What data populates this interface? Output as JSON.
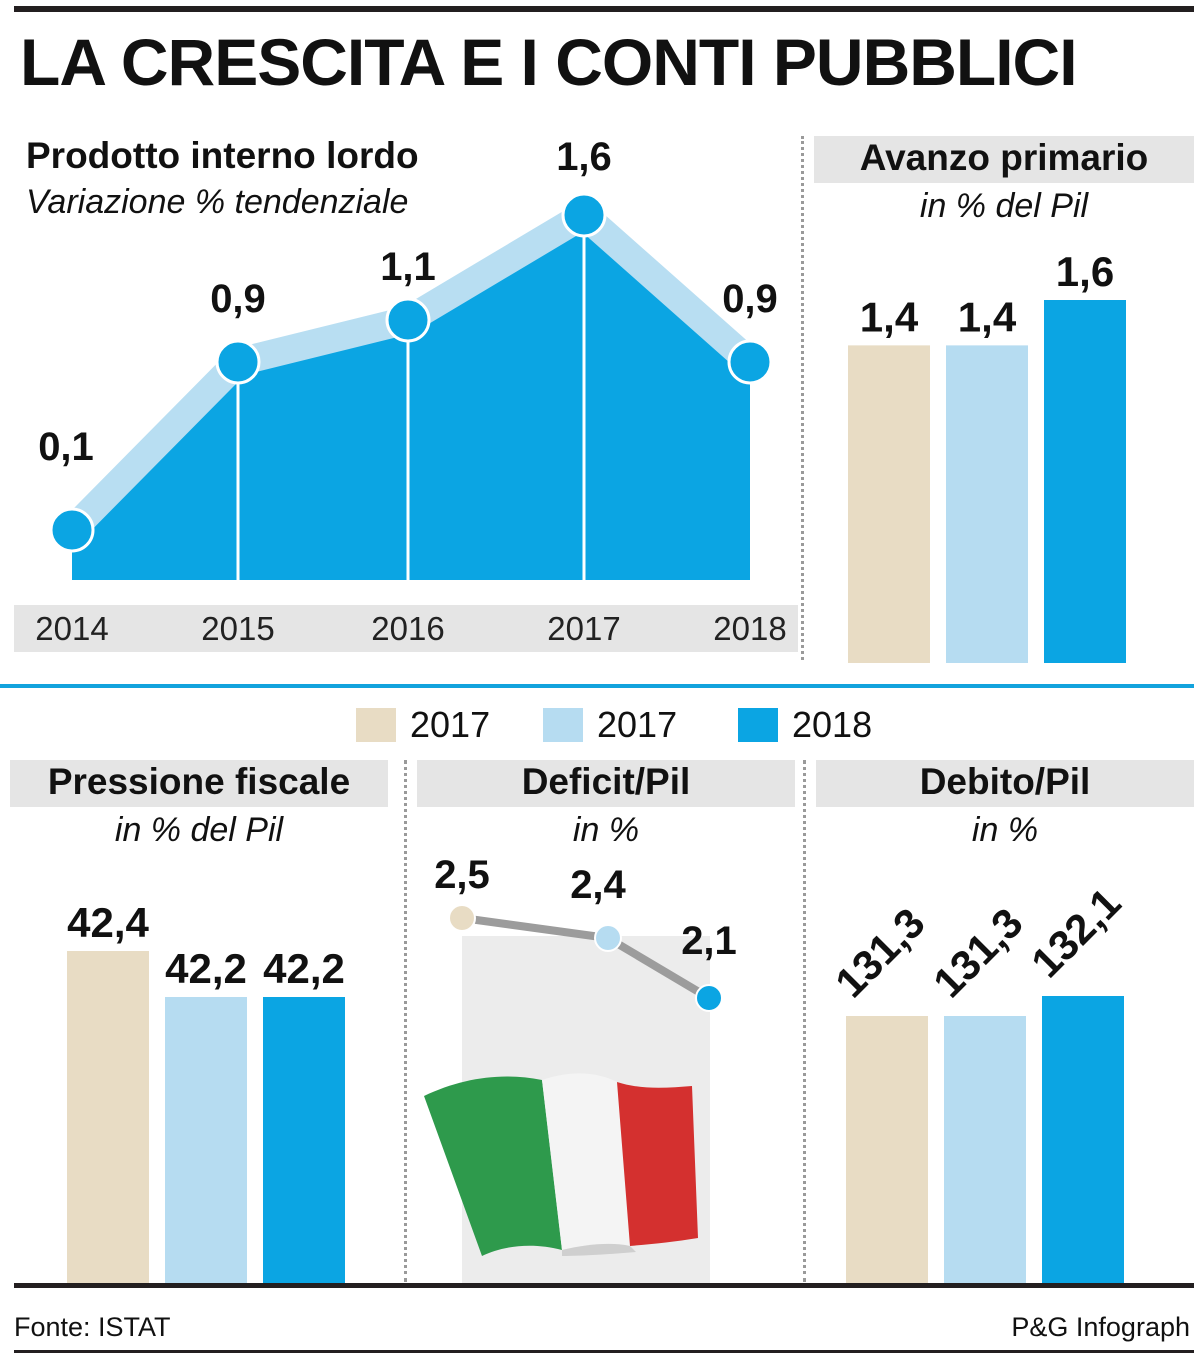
{
  "title": "LA CRESCITA E I CONTI PUBBLICI",
  "colors": {
    "beige": "#e8dcc4",
    "light_blue": "#b6dcf1",
    "blue": "#0ba5e3",
    "band": "#b8def2",
    "grey": "#e5e5e5",
    "dark": "#231f20"
  },
  "legend": [
    {
      "label": "2017",
      "color": "#e8dcc4"
    },
    {
      "label": "2017",
      "color": "#b6dcf1"
    },
    {
      "label": "2018",
      "color": "#0ba5e3"
    }
  ],
  "footer": {
    "source": "Fonte: ISTAT",
    "credit": "P&G Infograph"
  },
  "flag": {
    "icon": "italian-flag-icon",
    "colors": [
      "#2e9a4c",
      "#f4f4f4",
      "#d4302f"
    ]
  },
  "chart_data": [
    {
      "type": "area",
      "title": "Prodotto interno lordo",
      "subtitle": "Variazione % tendenziale",
      "x": [
        "2014",
        "2015",
        "2016",
        "2017",
        "2018"
      ],
      "values": [
        0.1,
        0.9,
        1.1,
        1.6,
        0.9
      ],
      "data_labels": [
        "0,1",
        "0,9",
        "1,1",
        "1,6",
        "0,9"
      ],
      "ylim": [
        0,
        1.6
      ]
    },
    {
      "type": "bar",
      "title": "Avanzo primario",
      "subtitle": "in % del Pil",
      "values": [
        1.4,
        1.4,
        1.6
      ],
      "data_labels": [
        "1,4",
        "1,4",
        "1,6"
      ],
      "ylim": [
        0,
        1.6
      ]
    },
    {
      "type": "bar",
      "title": "Pressione fiscale",
      "subtitle": "in % del Pil",
      "values": [
        42.4,
        42.2,
        42.2
      ],
      "data_labels": [
        "42,4",
        "42,2",
        "42,2"
      ]
    },
    {
      "type": "line",
      "title": "Deficit/Pil",
      "subtitle": "in %",
      "values": [
        2.5,
        2.4,
        2.1
      ],
      "data_labels": [
        "2,5",
        "2,4",
        "2,1"
      ]
    },
    {
      "type": "bar",
      "title": "Debito/Pil",
      "subtitle": "in %",
      "values": [
        131.3,
        131.3,
        132.1
      ],
      "data_labels": [
        "131,3",
        "131,3",
        "132,1"
      ]
    }
  ]
}
